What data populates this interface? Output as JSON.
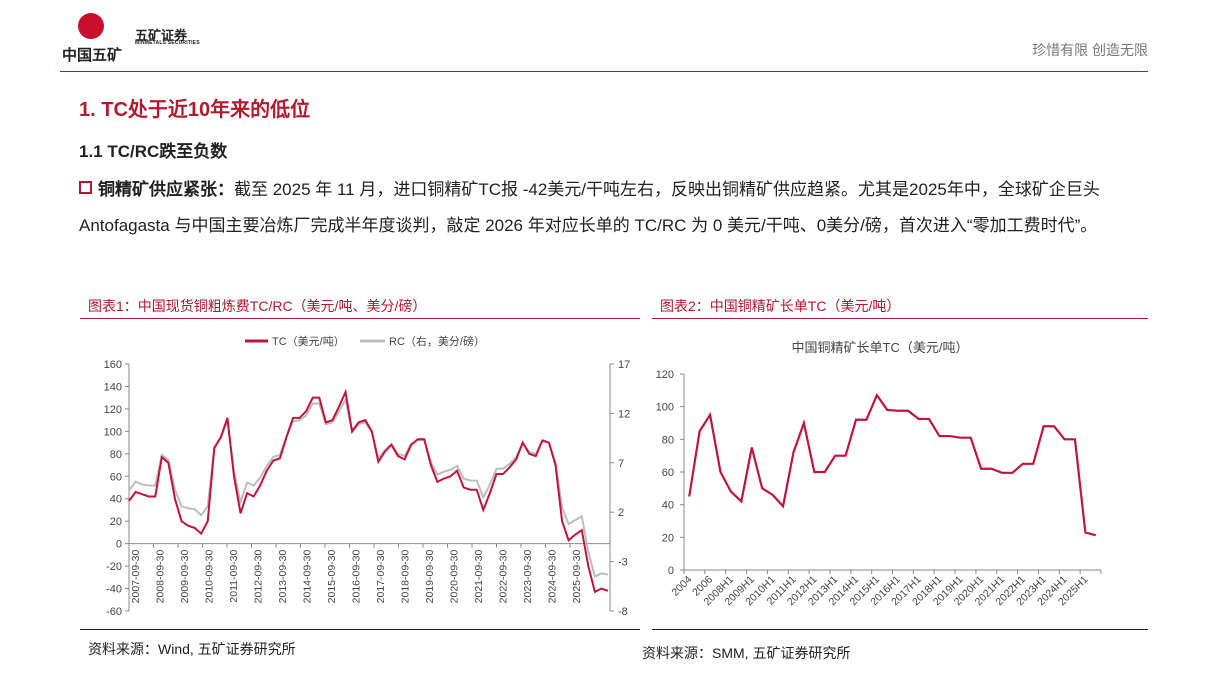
{
  "header": {
    "logo_text": "中国五矿",
    "company_name": "五矿证券",
    "company_name_en": "MINMETALS SECURITIES",
    "slogan": "珍惜有限  创造无限"
  },
  "section_title": "1. TC处于近10年来的低位",
  "subsection_title": "1.1 TC/RC跌至负数",
  "paragraph": {
    "lead": "铜精矿供应紧张：",
    "text": "截至  2025 年 11 月，进口铜精矿TC报  -42美元/干吨左右，反映出铜精矿供应趋紧。尤其是2025年中，全球矿企巨头 Antofagasta 与中国主要冶炼厂完成半年度谈判，敲定  2026 年对应长单的 TC/RC 为 0 美元/干吨、0美分/磅，首次进入“零加工费时代”。"
  },
  "figure1": {
    "caption": "图表1：中国现货铜粗炼费TC/RC（美元/吨、美分/磅）",
    "source": "资料来源：Wind, 五矿证券研究所"
  },
  "figure2": {
    "caption": "图表2：中国铜精矿长单TC（美元/吨）",
    "source": "资料来源：SMM, 五矿证券研究所"
  },
  "colors": {
    "accent": "#b01a2e",
    "tc": "#c0143c",
    "rc": "#bdbdbd"
  },
  "chart_data": [
    {
      "type": "line",
      "title": "",
      "legend": [
        "TC（美元/吨）",
        "RC（右，美分/磅）"
      ],
      "legend_position": "top",
      "x_tick_labels": [
        "2007-09-30",
        "2008-09-30",
        "2009-09-30",
        "2010-09-30",
        "2011-09-30",
        "2012-09-30",
        "2013-09-30",
        "2014-09-30",
        "2015-09-30",
        "2016-09-30",
        "2017-09-30",
        "2018-09-30",
        "2019-09-30",
        "2020-09-30",
        "2021-09-30",
        "2022-09-30",
        "2023-09-30",
        "2024-09-30",
        "2025-09-30"
      ],
      "ylim": [
        -60,
        160
      ],
      "yticks": [
        160,
        140,
        120,
        100,
        80,
        60,
        40,
        20,
        0,
        -20,
        -40,
        -60
      ],
      "y2lim": [
        -8,
        17
      ],
      "y2ticks": [
        17,
        12,
        7,
        2,
        -3,
        -8
      ],
      "x_start": "2007-09-30",
      "x_step": "quarter",
      "series": [
        {
          "name": "TC",
          "axis": "left",
          "values": [
            38,
            46,
            44,
            42,
            42,
            77,
            72,
            40,
            20,
            16,
            14,
            9,
            20,
            85,
            95,
            112,
            60,
            27,
            45,
            42,
            52,
            65,
            74,
            76,
            95,
            112,
            112,
            118,
            130,
            130,
            108,
            110,
            122,
            135,
            100,
            108,
            110,
            100,
            73,
            82,
            88,
            78,
            75,
            88,
            93,
            93,
            70,
            55,
            58,
            60,
            65,
            50,
            48,
            48,
            30,
            45,
            62,
            62,
            68,
            75,
            90,
            80,
            78,
            92,
            90,
            70,
            20,
            3,
            8,
            12,
            -20,
            -43,
            -40,
            -42
          ]
        },
        {
          "name": "RC",
          "axis": "right",
          "values": [
            4.2,
            5.1,
            4.8,
            4.7,
            4.7,
            7.8,
            7.3,
            4.3,
            2.6,
            2.4,
            2.3,
            1.7,
            2.6,
            8.6,
            9.5,
            11.2,
            6.2,
            3.0,
            5.0,
            4.7,
            5.5,
            6.7,
            7.6,
            7.8,
            9.6,
            11.2,
            11.3,
            11.8,
            13.0,
            13.0,
            10.9,
            11.1,
            12.2,
            13.4,
            10.1,
            10.9,
            11.1,
            10.1,
            7.5,
            8.3,
            8.9,
            7.9,
            7.7,
            8.9,
            9.3,
            9.3,
            7.1,
            5.8,
            6.1,
            6.3,
            6.7,
            5.4,
            5.2,
            5.2,
            3.5,
            4.8,
            6.4,
            6.4,
            6.9,
            7.6,
            9.0,
            8.1,
            7.9,
            9.2,
            9.0,
            7.0,
            2.5,
            0.8,
            1.2,
            1.6,
            -2.0,
            -4.5,
            -4.2,
            -4.3
          ]
        }
      ]
    },
    {
      "type": "line",
      "title": "中国铜精矿长单TC（美元/吨）",
      "ylim": [
        0,
        120
      ],
      "yticks": [
        120,
        100,
        80,
        60,
        40,
        20,
        0
      ],
      "categories": [
        "2004",
        "2005",
        "2006",
        "2007",
        "2008H1",
        "2008H2",
        "2009H1",
        "2009H2",
        "2010H1",
        "2010H2",
        "2011H1",
        "2011H2",
        "2012H1",
        "2012H2",
        "2013H1",
        "2013H2",
        "2014H1",
        "2014H2",
        "2015H1",
        "2015H2",
        "2016H1",
        "2016H2",
        "2017H1",
        "2017H2",
        "2018H1",
        "2018H2",
        "2019H1",
        "2019H2",
        "2020H1",
        "2020H2",
        "2021H1",
        "2021H2",
        "2022H1",
        "2022H2",
        "2023H1",
        "2023H2",
        "2024H1",
        "2024H2",
        "2025H1",
        "2025H2"
      ],
      "x_tick_labels": [
        "2004",
        "2006",
        "2008H1",
        "2009H1",
        "2010H1",
        "2011H1",
        "2012H1",
        "2013H1",
        "2014H1",
        "2015H1",
        "2016H1",
        "2017H1",
        "2018H1",
        "2019H1",
        "2020H1",
        "2021H1",
        "2022H1",
        "2023H1",
        "2024H1",
        "2025H1"
      ],
      "series": [
        {
          "name": "TC",
          "values": [
            45,
            85,
            95,
            60,
            48,
            42,
            75,
            50,
            46,
            39,
            72,
            90,
            60,
            60,
            70,
            70,
            92,
            92,
            107,
            98,
            97.5,
            97.5,
            92.5,
            92.5,
            82,
            82,
            81,
            81,
            62,
            62,
            59.5,
            59.5,
            65,
            65,
            88,
            88,
            80,
            80,
            23,
            21.25
          ]
        }
      ]
    }
  ]
}
